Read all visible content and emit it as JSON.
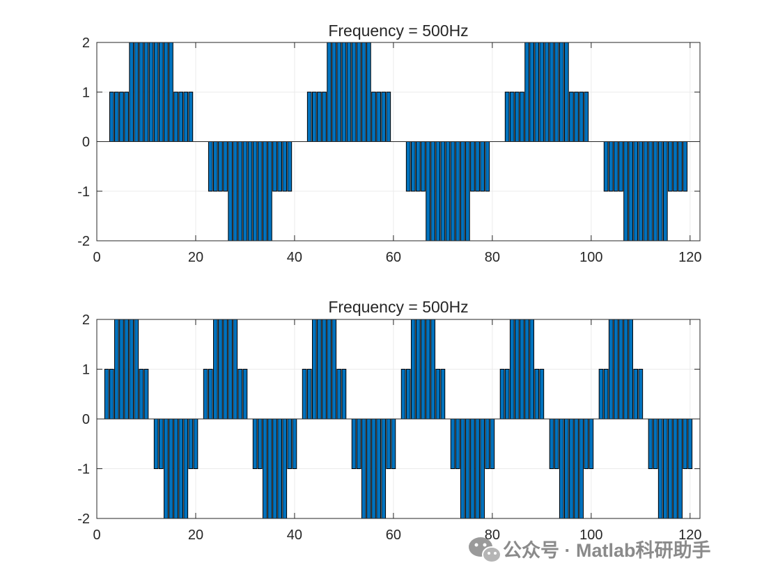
{
  "chart_data": [
    {
      "type": "bar",
      "title": "Frequency = 500Hz",
      "xlabel": "",
      "ylabel": "",
      "xlim": [
        0,
        122
      ],
      "ylim": [
        -2,
        2
      ],
      "xticks": [
        0,
        20,
        40,
        60,
        80,
        100,
        120
      ],
      "yticks": [
        -2,
        -1,
        0,
        1,
        2
      ],
      "grid": true,
      "bar_color": "#0072BD",
      "edge_color": "#000000",
      "x": [
        3,
        4,
        5,
        6,
        7,
        8,
        9,
        10,
        11,
        12,
        13,
        14,
        15,
        16,
        17,
        18,
        19,
        23,
        24,
        25,
        26,
        27,
        28,
        29,
        30,
        31,
        32,
        33,
        34,
        35,
        36,
        37,
        38,
        39,
        43,
        44,
        45,
        46,
        47,
        48,
        49,
        50,
        51,
        52,
        53,
        54,
        55,
        56,
        57,
        58,
        59,
        63,
        64,
        65,
        66,
        67,
        68,
        69,
        70,
        71,
        72,
        73,
        74,
        75,
        76,
        77,
        78,
        79,
        83,
        84,
        85,
        86,
        87,
        88,
        89,
        90,
        91,
        92,
        93,
        94,
        95,
        96,
        97,
        98,
        99,
        103,
        104,
        105,
        106,
        107,
        108,
        109,
        110,
        111,
        112,
        113,
        114,
        115,
        116,
        117,
        118,
        119
      ],
      "values": [
        1,
        1,
        1,
        1,
        2,
        2,
        2,
        2,
        2,
        2,
        2,
        2,
        2,
        1,
        1,
        1,
        1,
        -1,
        -1,
        -1,
        -1,
        -2,
        -2,
        -2,
        -2,
        -2,
        -2,
        -2,
        -2,
        -2,
        -1,
        -1,
        -1,
        -1,
        1,
        1,
        1,
        1,
        2,
        2,
        2,
        2,
        2,
        2,
        2,
        2,
        2,
        1,
        1,
        1,
        1,
        -1,
        -1,
        -1,
        -1,
        -2,
        -2,
        -2,
        -2,
        -2,
        -2,
        -2,
        -2,
        -2,
        -1,
        -1,
        -1,
        -1,
        1,
        1,
        1,
        1,
        2,
        2,
        2,
        2,
        2,
        2,
        2,
        2,
        2,
        1,
        1,
        1,
        1,
        -1,
        -1,
        -1,
        -1,
        -2,
        -2,
        -2,
        -2,
        -2,
        -2,
        -2,
        -2,
        -2,
        -1,
        -1,
        -1,
        -1
      ]
    },
    {
      "type": "bar",
      "title": "Frequency = 500Hz",
      "xlabel": "",
      "ylabel": "",
      "xlim": [
        0,
        122
      ],
      "ylim": [
        -2,
        2
      ],
      "xticks": [
        0,
        20,
        40,
        60,
        80,
        100,
        120
      ],
      "yticks": [
        -2,
        -1,
        0,
        1,
        2
      ],
      "grid": true,
      "bar_color": "#0072BD",
      "edge_color": "#000000",
      "x": [
        2,
        3,
        4,
        5,
        6,
        7,
        8,
        9,
        10,
        12,
        13,
        14,
        15,
        16,
        17,
        18,
        19,
        20,
        22,
        23,
        24,
        25,
        26,
        27,
        28,
        29,
        30,
        32,
        33,
        34,
        35,
        36,
        37,
        38,
        39,
        40,
        42,
        43,
        44,
        45,
        46,
        47,
        48,
        49,
        50,
        52,
        53,
        54,
        55,
        56,
        57,
        58,
        59,
        60,
        62,
        63,
        64,
        65,
        66,
        67,
        68,
        69,
        70,
        72,
        73,
        74,
        75,
        76,
        77,
        78,
        79,
        80,
        82,
        83,
        84,
        85,
        86,
        87,
        88,
        89,
        90,
        92,
        93,
        94,
        95,
        96,
        97,
        98,
        99,
        100,
        102,
        103,
        104,
        105,
        106,
        107,
        108,
        109,
        110,
        112,
        113,
        114,
        115,
        116,
        117,
        118,
        119,
        120
      ],
      "values": [
        1,
        1,
        2,
        2,
        2,
        2,
        2,
        1,
        1,
        -1,
        -1,
        -2,
        -2,
        -2,
        -2,
        -2,
        -1,
        -1,
        1,
        1,
        2,
        2,
        2,
        2,
        2,
        1,
        1,
        -1,
        -1,
        -2,
        -2,
        -2,
        -2,
        -2,
        -1,
        -1,
        1,
        1,
        2,
        2,
        2,
        2,
        2,
        1,
        1,
        -1,
        -1,
        -2,
        -2,
        -2,
        -2,
        -2,
        -1,
        -1,
        1,
        1,
        2,
        2,
        2,
        2,
        2,
        1,
        1,
        -1,
        -1,
        -2,
        -2,
        -2,
        -2,
        -2,
        -1,
        -1,
        1,
        1,
        2,
        2,
        2,
        2,
        2,
        1,
        1,
        -1,
        -1,
        -2,
        -2,
        -2,
        -2,
        -2,
        -1,
        -1,
        1,
        1,
        2,
        2,
        2,
        2,
        2,
        1,
        1,
        -1,
        -1,
        -2,
        -2,
        -2,
        -2,
        -2,
        -1,
        -1
      ]
    }
  ],
  "watermark": {
    "text": "公众号 · Matlab科研助手",
    "icon": "wechat-icon"
  },
  "colors": {
    "axis": "#262626",
    "grid": "#ebebeb",
    "background": "#ffffff"
  }
}
